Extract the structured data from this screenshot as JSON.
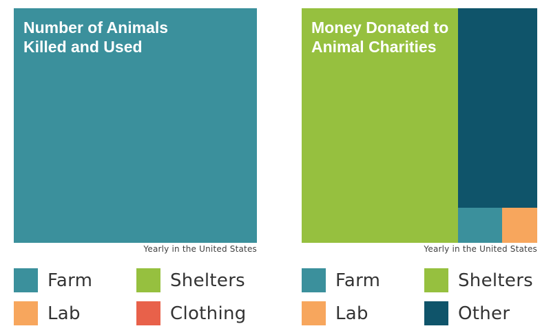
{
  "colors": {
    "Farm": "#3b909c",
    "Lab": "#f7a65d",
    "Shelters": "#96c03f",
    "Clothing": "#e8614a",
    "Other": "#0f546a"
  },
  "chart_data": [
    {
      "type": "treemap",
      "title": [
        "Number of Animals",
        "Killed and Used"
      ],
      "caption": "Yearly in the United States",
      "items": [
        {
          "name": "Farm",
          "value": 99.45
        },
        {
          "name": "Lab",
          "value": 0.45
        },
        {
          "name": "Clothing",
          "value": 0.1
        }
      ],
      "legend": [
        [
          "Farm",
          "Shelters"
        ],
        [
          "Lab",
          "Clothing"
        ]
      ]
    },
    {
      "type": "treemap",
      "title": [
        "Money Donated to",
        "Animal Charities"
      ],
      "caption": "Yearly in the United States",
      "items": [
        {
          "name": "Shelters",
          "value": 66.4
        },
        {
          "name": "Other",
          "value": 28.6
        },
        {
          "name": "Farm",
          "value": 2.8
        },
        {
          "name": "Lab",
          "value": 2.2
        }
      ],
      "legend": [
        [
          "Farm",
          "Shelters"
        ],
        [
          "Lab",
          "Other"
        ]
      ]
    }
  ]
}
